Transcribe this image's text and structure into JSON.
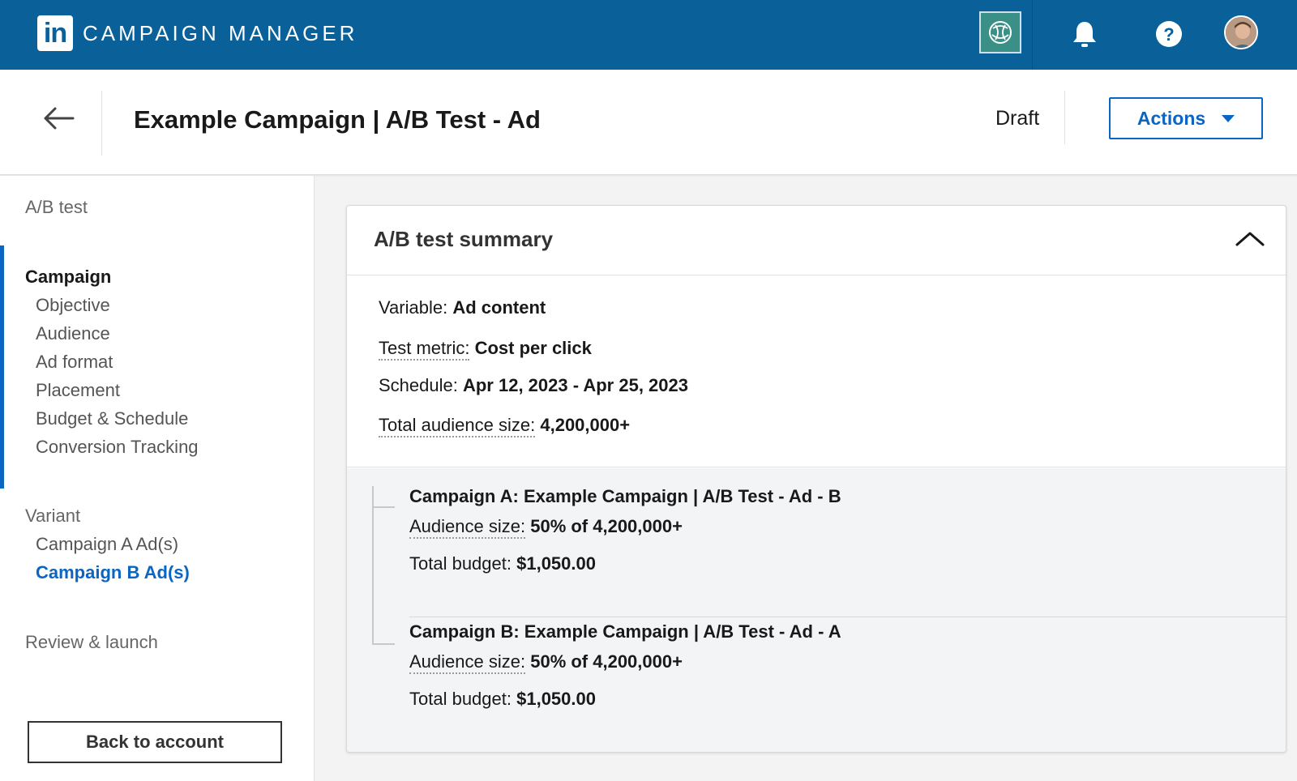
{
  "topbar": {
    "logo_text": "in",
    "app_title": "CAMPAIGN MANAGER",
    "icons": [
      "ai-assistant-icon",
      "bell-icon",
      "help-icon",
      "avatar"
    ],
    "bg_color": "#0a6099"
  },
  "header": {
    "title": "Example Campaign | A/B Test - Ad",
    "status": "Draft",
    "actions_label": "Actions"
  },
  "sidebar": {
    "ab_test_label": "A/B test",
    "campaign_heading": "Campaign",
    "campaign_items": [
      "Objective",
      "Audience",
      "Ad format",
      "Placement",
      "Budget & Schedule",
      "Conversion Tracking"
    ],
    "variant_heading": "Variant",
    "variant_items": [
      "Campaign A Ad(s)",
      "Campaign B Ad(s)"
    ],
    "active_item": "Campaign B Ad(s)",
    "review_label": "Review & launch",
    "back_label": "Back to account",
    "accent_color": "#0a66c2"
  },
  "summary": {
    "title": "A/B test summary",
    "variable_label": "Variable:",
    "variable_value": "Ad content",
    "metric_label": "Test metric:",
    "metric_value": "Cost per click",
    "schedule_label": "Schedule:",
    "schedule_value": "Apr 12, 2023 - Apr 25, 2023",
    "audience_label": "Total audience size:",
    "audience_value": "4,200,000+"
  },
  "variants": [
    {
      "title": "Campaign A: Example Campaign | A/B Test - Ad - B",
      "audience_label": "Audience size:",
      "audience_value": "50% of 4,200,000+",
      "budget_label": "Total budget:",
      "budget_value": "$1,050.00"
    },
    {
      "title": "Campaign B: Example Campaign | A/B Test - Ad - A",
      "audience_label": "Audience size:",
      "audience_value": "50% of 4,200,000+",
      "budget_label": "Total budget:",
      "budget_value": "$1,050.00"
    }
  ]
}
